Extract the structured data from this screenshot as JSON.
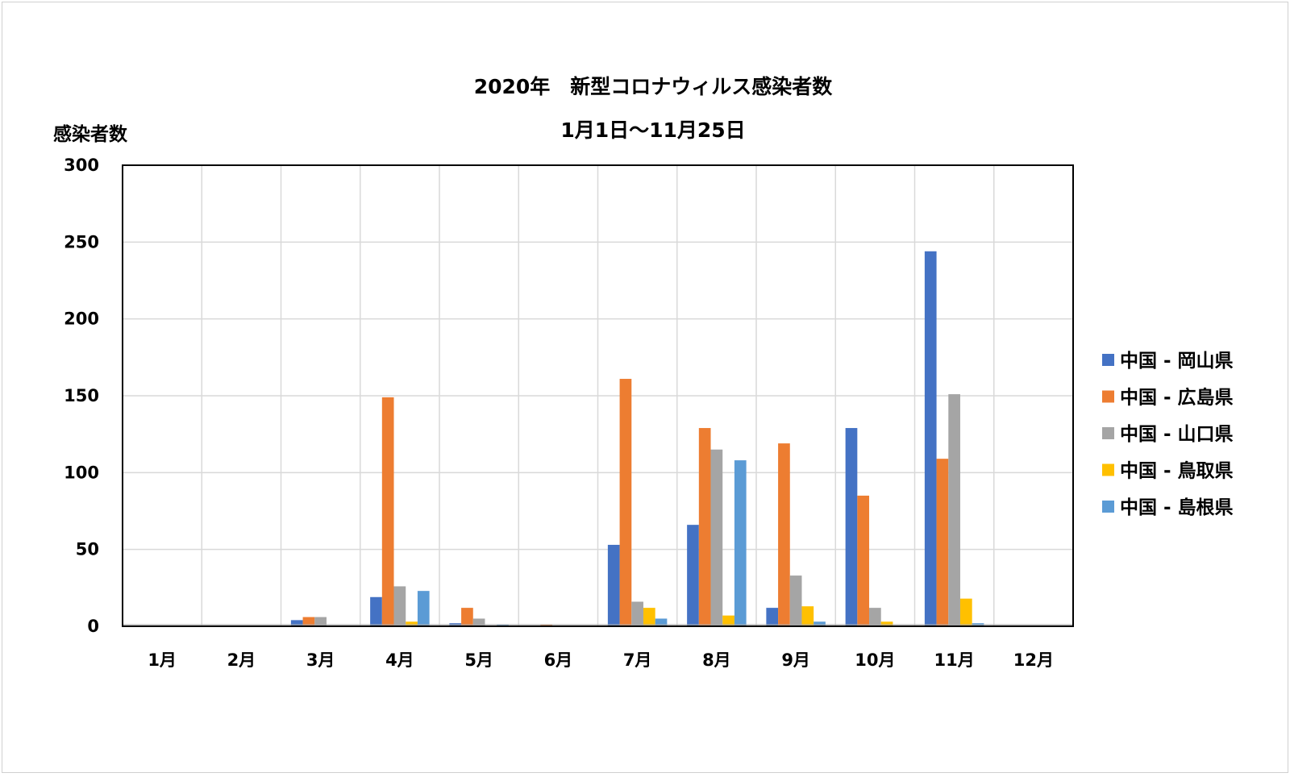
{
  "chart_data": {
    "type": "bar",
    "title": "2020年　新型コロナウィルス感染者数",
    "subtitle": "1月1日～11月25日",
    "ylabel": "感染者数",
    "xlabel": "",
    "ylim": [
      0,
      300
    ],
    "yticks": [
      "0",
      "50",
      "100",
      "150",
      "200",
      "250",
      "300"
    ],
    "categories": [
      "1月",
      "2月",
      "3月",
      "4月",
      "5月",
      "6月",
      "7月",
      "8月",
      "9月",
      "10月",
      "11月",
      "12月"
    ],
    "grid": true,
    "legend_position": "right",
    "series": [
      {
        "name": "中国 - 岡山県",
        "color": "#4472C4",
        "values": [
          0,
          0,
          4,
          19,
          2,
          0,
          53,
          66,
          12,
          129,
          244,
          0
        ]
      },
      {
        "name": "中国 - 広島県",
        "color": "#ED7D31",
        "values": [
          0,
          0,
          6,
          149,
          12,
          1,
          161,
          129,
          119,
          85,
          109,
          0
        ]
      },
      {
        "name": "中国 - 山口県",
        "color": "#A5A5A5",
        "values": [
          0,
          0,
          6,
          26,
          5,
          0,
          16,
          115,
          33,
          12,
          151,
          0
        ]
      },
      {
        "name": "中国 - 鳥取県",
        "color": "#FFC000",
        "values": [
          0,
          0,
          0,
          3,
          0,
          0,
          12,
          7,
          13,
          3,
          18,
          0
        ]
      },
      {
        "name": "中国 - 島根県",
        "color": "#5B9BD5",
        "values": [
          0,
          0,
          0,
          23,
          1,
          0,
          5,
          108,
          3,
          0,
          2,
          0
        ]
      }
    ]
  }
}
